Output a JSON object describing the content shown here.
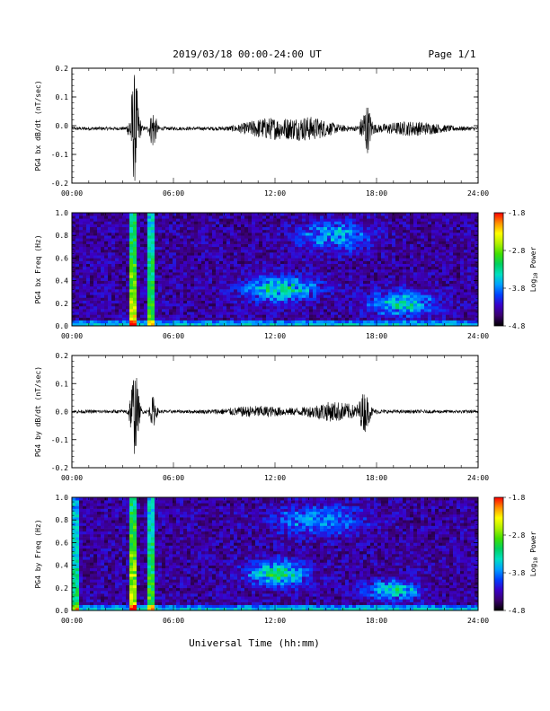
{
  "header": {
    "title": "2019/03/18  00:00-24:00 UT",
    "page_label": "Page 1/1"
  },
  "footer": {
    "xlabel": "Universal Time (hh:mm)"
  },
  "colorbar": {
    "tick_labels": [
      "-1.8",
      "-2.8",
      "-3.8",
      "-4.8"
    ],
    "title_prefix": "Log",
    "title_sub": "10",
    "title_suffix": " Power",
    "stops": [
      "#000000",
      "#3a006e",
      "#3a00c8",
      "#0040ff",
      "#00a0ff",
      "#00e0c0",
      "#00d060",
      "#40e000",
      "#b0f000",
      "#ffff00",
      "#ff9000",
      "#ff0000"
    ]
  },
  "chart_data": [
    {
      "type": "line",
      "ylabel": "PG4 bx dB/dt (nT/sec)",
      "xlim": [
        0,
        24
      ],
      "ylim": [
        -0.2,
        0.2
      ],
      "yticks": [
        -0.2,
        -0.1,
        0.0,
        0.1,
        0.2
      ],
      "ytick_labels": [
        "-0.2",
        "-0.1",
        "0.0",
        "0.1",
        "0.2"
      ],
      "xtick_labels": [
        "00:00",
        "06:00",
        "12:00",
        "18:00",
        "24:00"
      ],
      "baseline": -0.01,
      "activity": [
        {
          "t": 3.7,
          "amp": 0.19,
          "width": 0.25
        },
        {
          "t": 4.8,
          "amp": 0.07,
          "width": 0.2
        },
        {
          "t": 11.5,
          "amp": 0.03,
          "width": 1.5
        },
        {
          "t": 14.0,
          "amp": 0.035,
          "width": 1.5
        },
        {
          "t": 17.4,
          "amp": 0.08,
          "width": 0.3
        },
        {
          "t": 20.0,
          "amp": 0.02,
          "width": 2.0
        }
      ]
    },
    {
      "type": "heatmap",
      "ylabel": "PG4 bx Freq (Hz)",
      "xlim": [
        0,
        24
      ],
      "ylim": [
        0,
        1.0
      ],
      "yticks": [
        0.0,
        0.2,
        0.4,
        0.6,
        0.8,
        1.0
      ],
      "ytick_labels": [
        "0.0",
        "0.2",
        "0.4",
        "0.6",
        "0.8",
        "1.0"
      ],
      "xtick_labels": [
        "00:00",
        "06:00",
        "12:00",
        "18:00",
        "24:00"
      ],
      "zlim": [
        -4.8,
        -1.8
      ],
      "features": [
        {
          "kind": "spike",
          "t": 3.6,
          "level": 0.7
        },
        {
          "kind": "spike",
          "t": 4.7,
          "level": 0.55
        },
        {
          "kind": "blob",
          "t": 12.3,
          "f": 0.33,
          "st": 2.0,
          "sf": 0.1,
          "level": 0.42
        },
        {
          "kind": "blob",
          "t": 15.5,
          "f": 0.8,
          "st": 2.0,
          "sf": 0.12,
          "level": 0.28
        },
        {
          "kind": "blob",
          "t": 19.5,
          "f": 0.2,
          "st": 1.8,
          "sf": 0.1,
          "level": 0.38
        }
      ]
    },
    {
      "type": "line",
      "ylabel": "PG4 by dB/dt (nT/sec)",
      "xlim": [
        0,
        24
      ],
      "ylim": [
        -0.2,
        0.2
      ],
      "yticks": [
        -0.2,
        -0.1,
        0.0,
        0.1,
        0.2
      ],
      "ytick_labels": [
        "-0.2",
        "-0.1",
        "0.0",
        "0.1",
        "0.2"
      ],
      "xtick_labels": [
        "00:00",
        "06:00",
        "12:00",
        "18:00",
        "24:00"
      ],
      "baseline": 0.0,
      "activity": [
        {
          "t": 3.7,
          "amp": 0.15,
          "width": 0.25
        },
        {
          "t": 4.8,
          "amp": 0.05,
          "width": 0.2
        },
        {
          "t": 11.0,
          "amp": 0.015,
          "width": 2.0
        },
        {
          "t": 15.5,
          "amp": 0.03,
          "width": 1.6
        },
        {
          "t": 17.3,
          "amp": 0.06,
          "width": 0.3
        }
      ]
    },
    {
      "type": "heatmap",
      "ylabel": "PG4 by Freq (Hz)",
      "xlim": [
        0,
        24
      ],
      "ylim": [
        0,
        1.0
      ],
      "yticks": [
        0.0,
        0.2,
        0.4,
        0.6,
        0.8,
        1.0
      ],
      "ytick_labels": [
        "0.0",
        "0.2",
        "0.4",
        "0.6",
        "0.8",
        "1.0"
      ],
      "xtick_labels": [
        "00:00",
        "06:00",
        "12:00",
        "18:00",
        "24:00"
      ],
      "zlim": [
        -4.8,
        -1.8
      ],
      "features": [
        {
          "kind": "spike",
          "t": 3.6,
          "level": 0.72
        },
        {
          "kind": "spike",
          "t": 4.7,
          "level": 0.55
        },
        {
          "kind": "spike",
          "t": 0.1,
          "level": 0.45
        },
        {
          "kind": "blob",
          "t": 12.2,
          "f": 0.33,
          "st": 1.6,
          "sf": 0.1,
          "level": 0.45
        },
        {
          "kind": "blob",
          "t": 14.5,
          "f": 0.8,
          "st": 2.5,
          "sf": 0.12,
          "level": 0.26
        },
        {
          "kind": "blob",
          "t": 19.0,
          "f": 0.18,
          "st": 1.5,
          "sf": 0.08,
          "level": 0.38
        }
      ]
    }
  ]
}
